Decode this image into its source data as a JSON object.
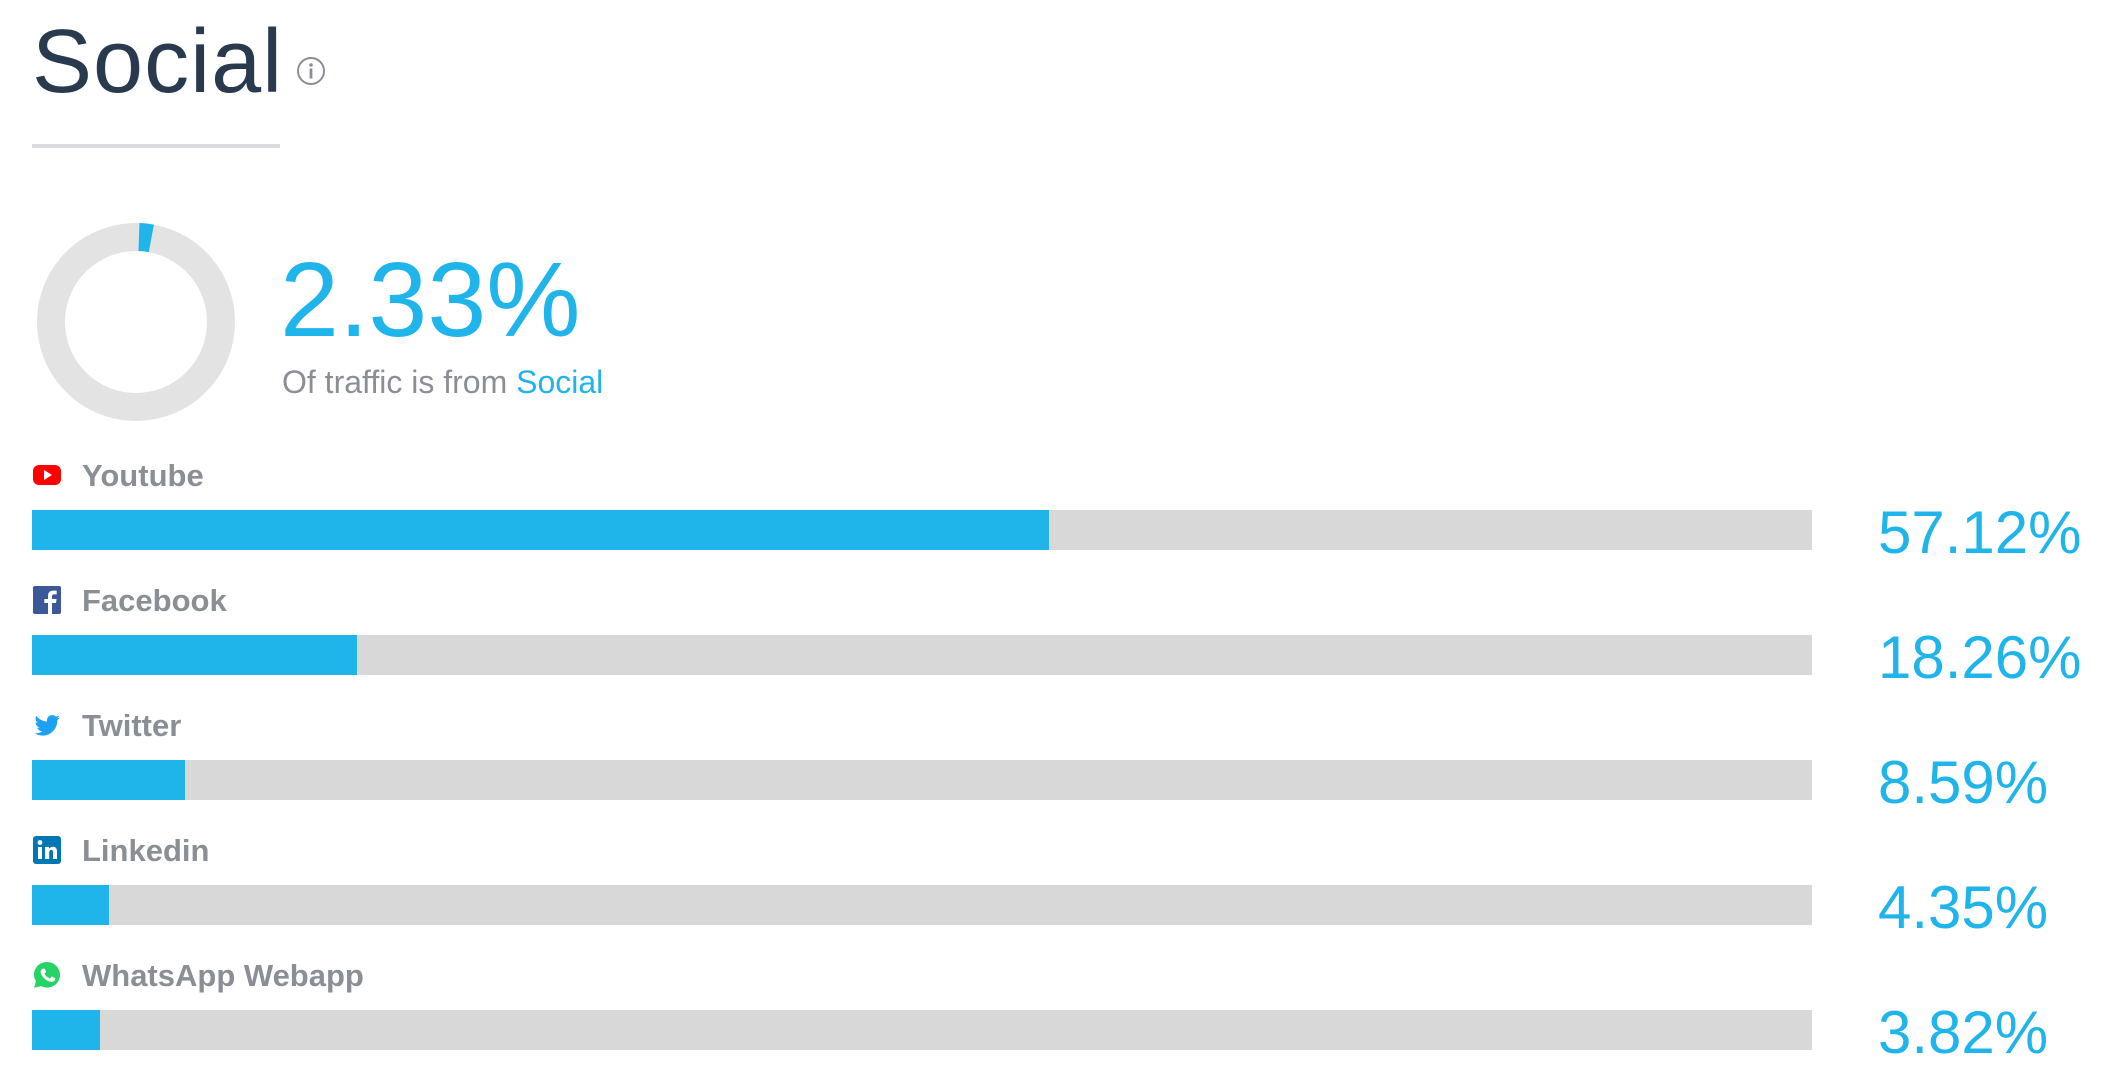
{
  "header": {
    "title": "Social",
    "info_icon": "info-circle-icon"
  },
  "summary": {
    "value": "2.33%",
    "value_fraction": 0.0233,
    "subtitle_prefix": "Of traffic is from",
    "subtitle_accent": "Social"
  },
  "colors": {
    "accent": "#1fb4ea",
    "track": "#d8d8d8",
    "title": "#2a3a4e",
    "muted_text": "#8a8f96",
    "youtube": "#ff0000",
    "facebook": "#3b5998",
    "twitter": "#1da1f2",
    "linkedin": "#0077b5",
    "whatsapp": "#25d366"
  },
  "chart_data": {
    "type": "bar",
    "orientation": "horizontal",
    "categories": [
      "Youtube",
      "Facebook",
      "Twitter",
      "Linkedin",
      "WhatsApp Webapp"
    ],
    "values": [
      57.12,
      18.26,
      8.59,
      4.35,
      3.82
    ],
    "value_labels": [
      "57.12%",
      "18.26%",
      "8.59%",
      "4.35%",
      "3.82%"
    ],
    "icons": [
      "youtube-icon",
      "facebook-icon",
      "twitter-icon",
      "linkedin-icon",
      "whatsapp-icon"
    ],
    "xlim": [
      0,
      100
    ],
    "title": "Social",
    "xlabel": "",
    "ylabel": ""
  }
}
